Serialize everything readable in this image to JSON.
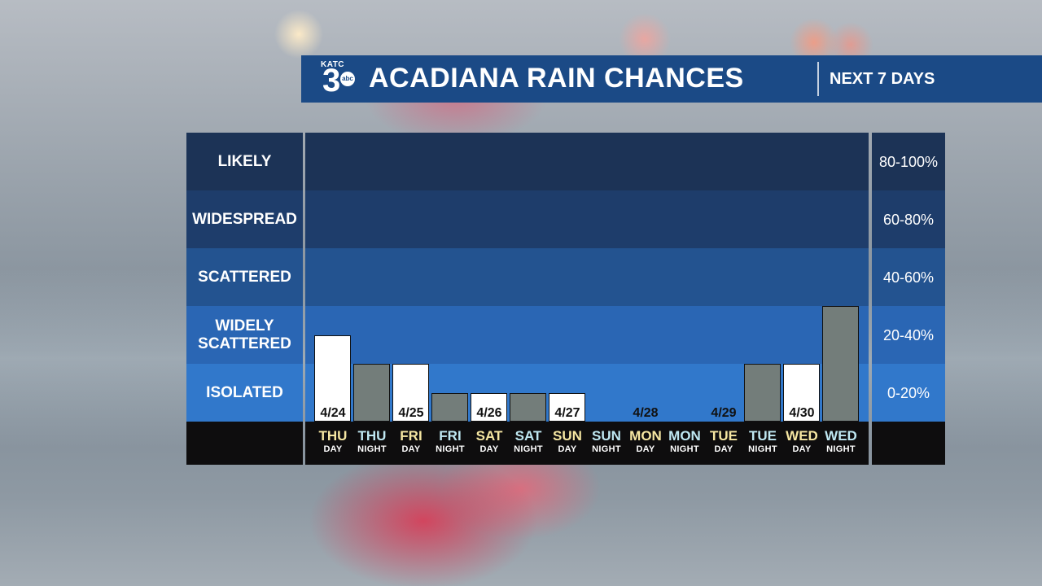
{
  "header": {
    "logo_text": "KATC",
    "logo_number": "3",
    "logo_network": "abc",
    "title": "ACADIANA RAIN CHANCES",
    "subtitle": "NEXT 7 DAYS"
  },
  "colors": {
    "day_label": "#f6e7a2",
    "night_label": "#bfe8f2",
    "day_bar": "#ffffff",
    "night_bar": "#737d7a",
    "header_bg": "#1b4a86"
  },
  "chart_data": {
    "type": "bar",
    "title": "ACADIANA RAIN CHANCES",
    "subtitle": "NEXT 7 DAYS",
    "ylim": [
      0,
      100
    ],
    "categories": [
      {
        "name": "THU",
        "part": "DAY",
        "date": "4/24"
      },
      {
        "name": "THU",
        "part": "NIGHT",
        "date": ""
      },
      {
        "name": "FRI",
        "part": "DAY",
        "date": "4/25"
      },
      {
        "name": "FRI",
        "part": "NIGHT",
        "date": ""
      },
      {
        "name": "SAT",
        "part": "DAY",
        "date": "4/26"
      },
      {
        "name": "SAT",
        "part": "NIGHT",
        "date": ""
      },
      {
        "name": "SUN",
        "part": "DAY",
        "date": "4/27"
      },
      {
        "name": "SUN",
        "part": "NIGHT",
        "date": ""
      },
      {
        "name": "MON",
        "part": "DAY",
        "date": "4/28"
      },
      {
        "name": "MON",
        "part": "NIGHT",
        "date": ""
      },
      {
        "name": "TUE",
        "part": "DAY",
        "date": "4/29"
      },
      {
        "name": "TUE",
        "part": "NIGHT",
        "date": ""
      },
      {
        "name": "WED",
        "part": "DAY",
        "date": "4/30"
      },
      {
        "name": "WED",
        "part": "NIGHT",
        "date": ""
      }
    ],
    "values": [
      30,
      20,
      20,
      10,
      10,
      10,
      10,
      0,
      0,
      0,
      0,
      20,
      20,
      40
    ],
    "bands": [
      {
        "label": "LIKELY",
        "range": "80-100%"
      },
      {
        "label": "WIDESPREAD",
        "range": "60-80%"
      },
      {
        "label": "SCATTERED",
        "range": "40-60%"
      },
      {
        "label": "WIDELY\nSCATTERED",
        "range": "20-40%"
      },
      {
        "label": "ISOLATED",
        "range": "0-20%"
      }
    ]
  }
}
